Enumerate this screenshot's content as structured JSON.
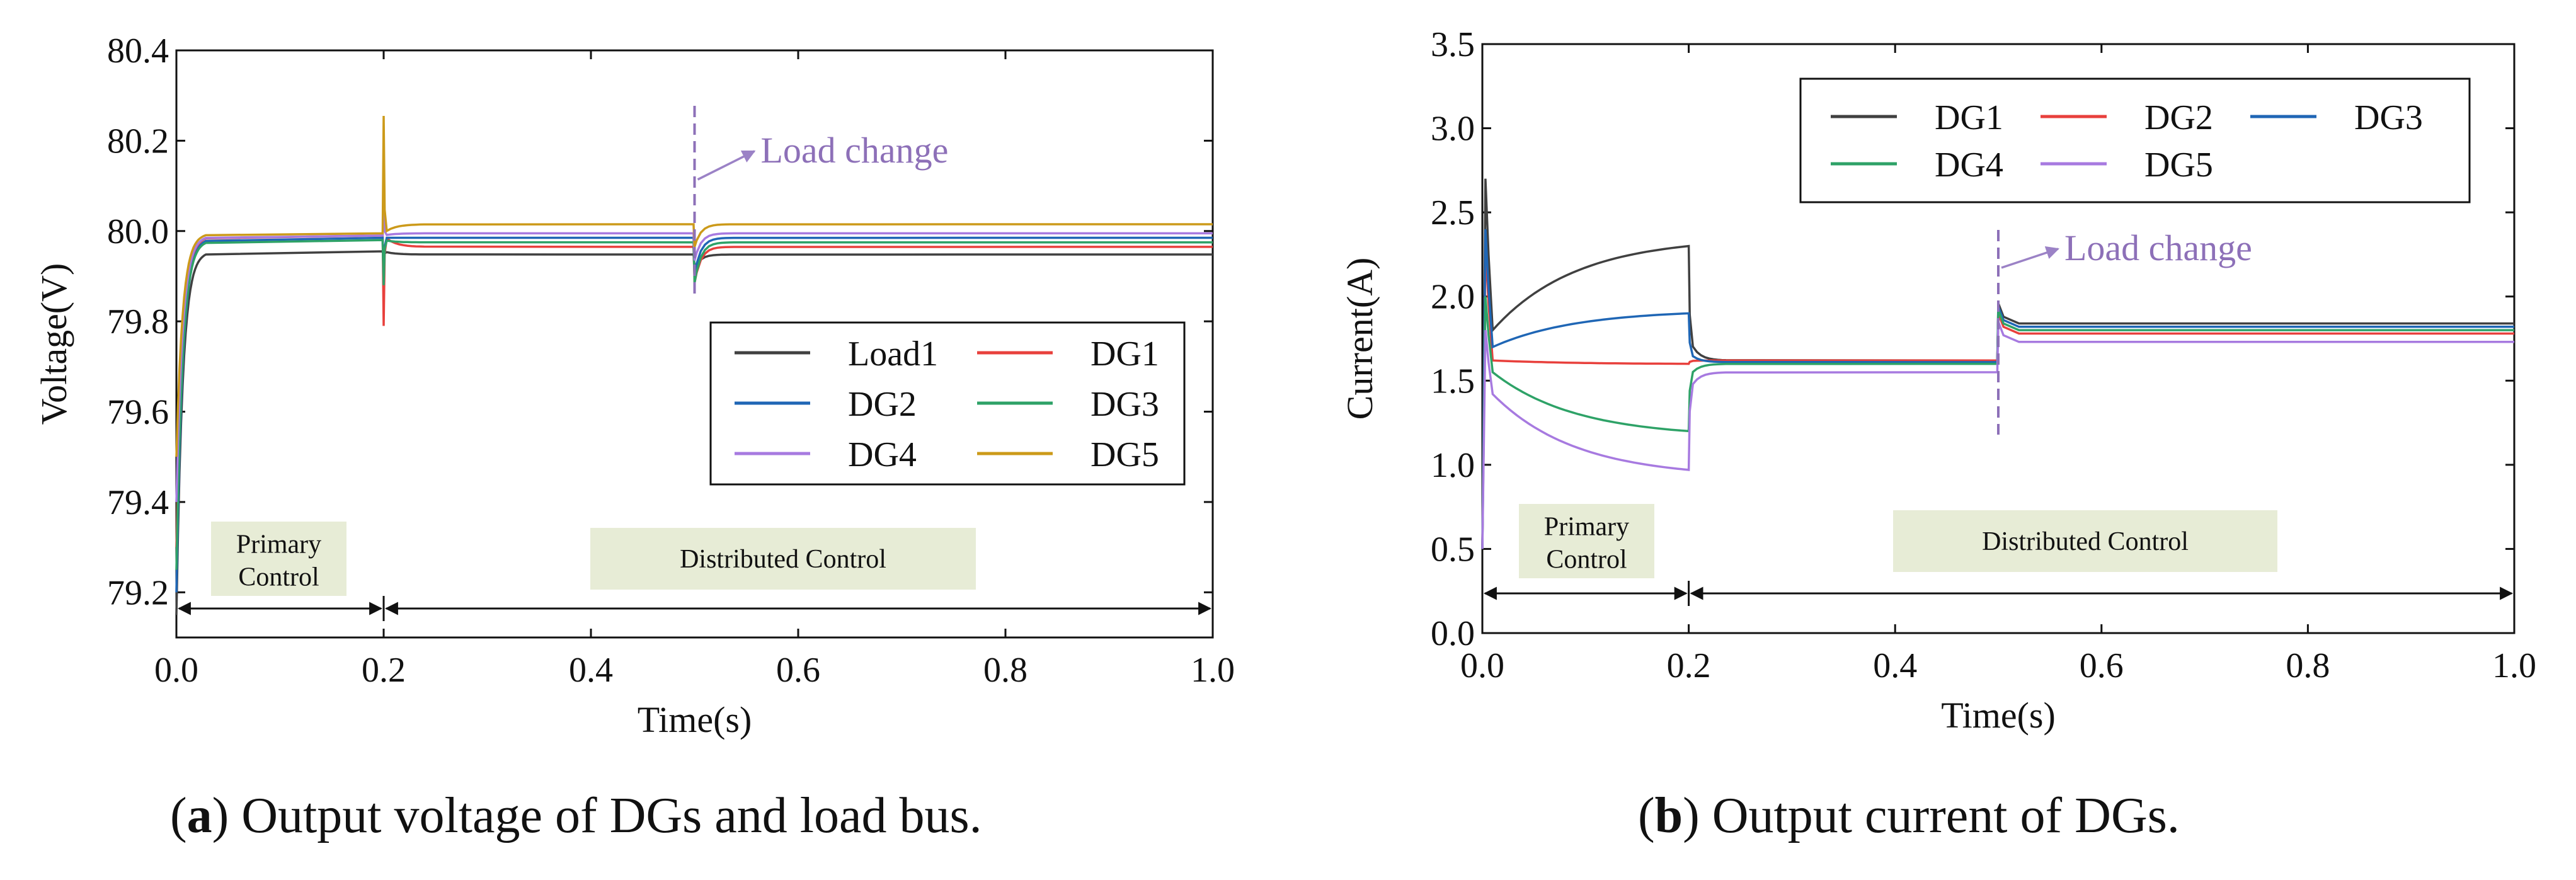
{
  "chart_data": [
    {
      "type": "line",
      "panel": "a",
      "caption": {
        "letter": "a",
        "open": "(",
        "close": ")",
        "text": " Output voltage of DGs and load bus."
      },
      "xlabel": "Time(s)",
      "ylabel": "Voltage(V)",
      "xlim": [
        0.0,
        1.0
      ],
      "ylim": [
        79.1,
        80.4
      ],
      "xticks": [
        "0.0",
        "0.2",
        "0.4",
        "0.6",
        "0.8",
        "1.0"
      ],
      "xtick_values": [
        0,
        0.2,
        0.4,
        0.6,
        0.8,
        1.0
      ],
      "yticks": [
        "79.2",
        "79.4",
        "79.6",
        "79.8",
        "80.0",
        "80.2",
        "80.4"
      ],
      "ytick_values": [
        79.2,
        79.4,
        79.6,
        79.8,
        80.0,
        80.2,
        80.4
      ],
      "legend": {
        "placement": "lower-right",
        "columns": 2
      },
      "annotations": {
        "load_change": {
          "text": "Load change",
          "x": 0.5
        },
        "primary_control": {
          "line1": "Primary",
          "line2": "Control",
          "start": 0.0,
          "end": 0.2
        },
        "distributed_control": {
          "text": "Distributed Control",
          "start": 0.2,
          "end": 1.0
        }
      },
      "series": [
        {
          "name": "Load1",
          "color": "#404040",
          "start": 79.15,
          "v1": 79.955,
          "s1": -0.02,
          "v2": 79.948,
          "s2": -0.03,
          "v3": 79.948
        },
        {
          "name": "DG1",
          "color": "#e8403c",
          "start": 79.3,
          "v1": 79.99,
          "s1": -0.2,
          "v2": 79.965,
          "s2": -0.08,
          "v3": 79.965
        },
        {
          "name": "DG2",
          "color": "#1f66b5",
          "start": 79.2,
          "v1": 79.985,
          "s1": -0.1,
          "v2": 79.985,
          "s2": -0.08,
          "v3": 79.985
        },
        {
          "name": "DG3",
          "color": "#2ea267",
          "start": 79.25,
          "v1": 79.98,
          "s1": -0.1,
          "v2": 79.975,
          "s2": -0.09,
          "v3": 79.975
        },
        {
          "name": "DG4",
          "color": "#a77ae0",
          "start": 79.4,
          "v1": 79.99,
          "s1": 0.05,
          "v2": 79.995,
          "s2": -0.06,
          "v3": 79.995
        },
        {
          "name": "DG5",
          "color": "#cc9a1a",
          "start": 79.5,
          "v1": 79.995,
          "s1": 0.26,
          "v2": 80.015,
          "s2": -0.05,
          "v3": 80.015
        }
      ]
    },
    {
      "type": "line",
      "panel": "b",
      "caption": {
        "letter": "b",
        "open": "(",
        "close": ")",
        "text": " Output current of DGs."
      },
      "xlabel": "Time(s)",
      "ylabel": "Current(A)",
      "xlim": [
        0.0,
        1.0
      ],
      "ylim": [
        0.0,
        3.5
      ],
      "xticks": [
        "0.0",
        "0.2",
        "0.4",
        "0.6",
        "0.8",
        "1.0"
      ],
      "xtick_values": [
        0,
        0.2,
        0.4,
        0.6,
        0.8,
        1.0
      ],
      "yticks": [
        "0.0",
        "0.5",
        "1.0",
        "1.5",
        "2.0",
        "2.5",
        "3.0",
        "3.5"
      ],
      "ytick_values": [
        0,
        0.5,
        1.0,
        1.5,
        2.0,
        2.5,
        3.0,
        3.5
      ],
      "legend": {
        "placement": "top-right",
        "columns": 3
      },
      "annotations": {
        "load_change": {
          "text": "Load change",
          "x": 0.5
        },
        "primary_control": {
          "line1": "Primary",
          "line2": "Control",
          "start": 0.0,
          "end": 0.2
        },
        "distributed_control": {
          "text": "Distributed Control",
          "start": 0.2,
          "end": 1.0
        }
      },
      "series": [
        {
          "name": "DG1",
          "color": "#404040",
          "peak": 2.7,
          "a": 1.8,
          "b": 2.3,
          "v2": 1.62,
          "v3": 1.84
        },
        {
          "name": "DG2",
          "color": "#e8403c",
          "peak": 2.3,
          "a": 1.62,
          "b": 1.6,
          "v2": 1.62,
          "v3": 1.78
        },
        {
          "name": "DG3",
          "color": "#1f66b5",
          "peak": 2.4,
          "a": 1.7,
          "b": 1.9,
          "v2": 1.61,
          "v3": 1.82
        },
        {
          "name": "DG4",
          "color": "#2ea267",
          "peak": 2.0,
          "a": 1.55,
          "b": 1.2,
          "v2": 1.6,
          "v3": 1.8
        },
        {
          "name": "DG5",
          "color": "#a77ae0",
          "peak": 1.8,
          "a": 1.42,
          "b": 0.97,
          "v2": 1.55,
          "v3": 1.73
        }
      ]
    }
  ]
}
